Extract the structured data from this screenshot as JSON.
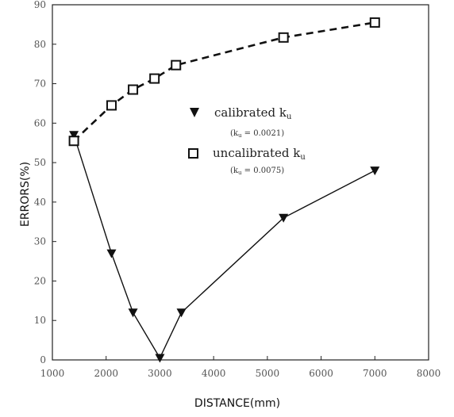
{
  "chart_data": {
    "type": "line",
    "xlabel": "DISTANCE(mm)",
    "ylabel": "ERRORS(%)",
    "xlim": [
      1000,
      8000
    ],
    "ylim": [
      0,
      90
    ],
    "xticks": [
      "1000",
      "2000",
      "3000",
      "4000",
      "5000",
      "6000",
      "7000",
      "8000"
    ],
    "yticks": [
      "0",
      "10",
      "20",
      "30",
      "40",
      "50",
      "60",
      "70",
      "80",
      "90"
    ],
    "grid": false,
    "legend_position": "center",
    "series": [
      {
        "name": "calibrated k",
        "name_subscript": "u",
        "note": "(k",
        "note_subscript": "u",
        "note_value": " = 0.0021)",
        "marker": "filled-triangle-down",
        "line": "solid",
        "color": "#111111",
        "x": [
          1400,
          2100,
          2500,
          3000,
          3400,
          5300,
          7000
        ],
        "y": [
          57,
          27,
          12,
          0.5,
          12,
          36,
          48
        ]
      },
      {
        "name": "uncalibrated k",
        "name_subscript": "u",
        "note": "(k",
        "note_subscript": "u",
        "note_value": " = 0.0075)",
        "marker": "open-square",
        "line": "dashed",
        "color": "#111111",
        "x": [
          1400,
          2100,
          2500,
          2900,
          3300,
          5300,
          7000
        ],
        "y": [
          55.5,
          64.5,
          68.5,
          71.3,
          74.7,
          81.7,
          85.5
        ]
      }
    ]
  }
}
